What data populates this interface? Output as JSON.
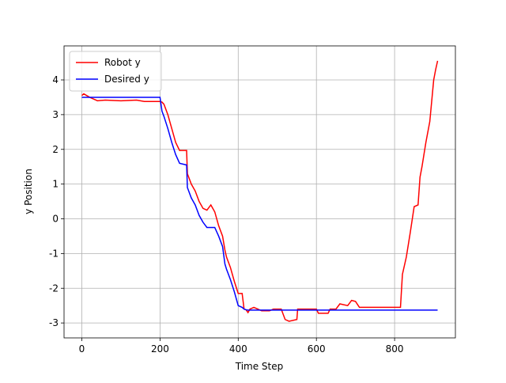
{
  "chart_data": {
    "type": "line",
    "xlabel": "Time Step",
    "ylabel": "y Position",
    "x": [
      0,
      5,
      20,
      40,
      60,
      100,
      140,
      160,
      200,
      205,
      210,
      220,
      230,
      240,
      250,
      268,
      270,
      280,
      290,
      300,
      310,
      320,
      330,
      340,
      350,
      360,
      366,
      370,
      380,
      390,
      400,
      410,
      415,
      420,
      425,
      430,
      440,
      450,
      460,
      480,
      490,
      510,
      520,
      530,
      550,
      552,
      600,
      605,
      630,
      635,
      650,
      660,
      680,
      690,
      700,
      710,
      800,
      815,
      820,
      830,
      840,
      850,
      860,
      865,
      870,
      880,
      890,
      895,
      900,
      905,
      910
    ],
    "series": [
      {
        "name": "Robot y",
        "color": "#ff0000",
        "values": [
          3.55,
          3.6,
          3.5,
          3.4,
          3.42,
          3.4,
          3.42,
          3.38,
          3.38,
          3.36,
          3.3,
          3.0,
          2.6,
          2.2,
          1.97,
          1.97,
          1.3,
          1.0,
          0.8,
          0.5,
          0.3,
          0.25,
          0.4,
          0.2,
          -0.2,
          -0.5,
          -0.9,
          -1.1,
          -1.4,
          -1.8,
          -2.15,
          -2.15,
          -2.6,
          -2.62,
          -2.7,
          -2.6,
          -2.55,
          -2.6,
          -2.65,
          -2.65,
          -2.6,
          -2.6,
          -2.9,
          -2.95,
          -2.9,
          -2.6,
          -2.6,
          -2.72,
          -2.72,
          -2.6,
          -2.6,
          -2.45,
          -2.5,
          -2.35,
          -2.38,
          -2.55,
          -2.55,
          -2.55,
          -1.6,
          -1.1,
          -0.4,
          0.35,
          0.4,
          1.2,
          1.5,
          2.2,
          2.8,
          3.4,
          4.0,
          4.3,
          4.55
        ]
      },
      {
        "name": "Desired y",
        "color": "#0000ff",
        "values": [
          3.5,
          3.5,
          3.5,
          3.5,
          3.5,
          3.5,
          3.5,
          3.5,
          3.5,
          3.1,
          2.95,
          2.6,
          2.2,
          1.85,
          1.6,
          1.55,
          0.9,
          0.6,
          0.4,
          0.1,
          -0.1,
          -0.25,
          -0.25,
          -0.25,
          -0.5,
          -0.8,
          -1.3,
          -1.45,
          -1.75,
          -2.1,
          -2.5,
          -2.55,
          -2.6,
          -2.62,
          -2.63,
          -2.63,
          -2.63,
          -2.63,
          -2.63,
          -2.63,
          -2.63,
          -2.63,
          -2.63,
          -2.63,
          -2.63,
          -2.63,
          -2.63,
          -2.63,
          -2.63,
          -2.63,
          -2.63,
          -2.63,
          -2.63,
          -2.63,
          -2.63,
          -2.63,
          -2.63,
          -2.63,
          -2.63,
          -2.63,
          -2.63,
          -2.63,
          -2.63,
          -2.63,
          -2.63,
          -2.63,
          -2.63,
          -2.63,
          -2.63,
          -2.63,
          -2.63
        ]
      }
    ],
    "xlim": [
      -45.5,
      955.5
    ],
    "ylim": [
      -3.43,
      4.98
    ],
    "xticks": [
      0,
      200,
      400,
      600,
      800
    ],
    "yticks": [
      -3,
      -2,
      -1,
      0,
      1,
      2,
      3,
      4
    ],
    "grid": true,
    "legend": "upper left"
  }
}
